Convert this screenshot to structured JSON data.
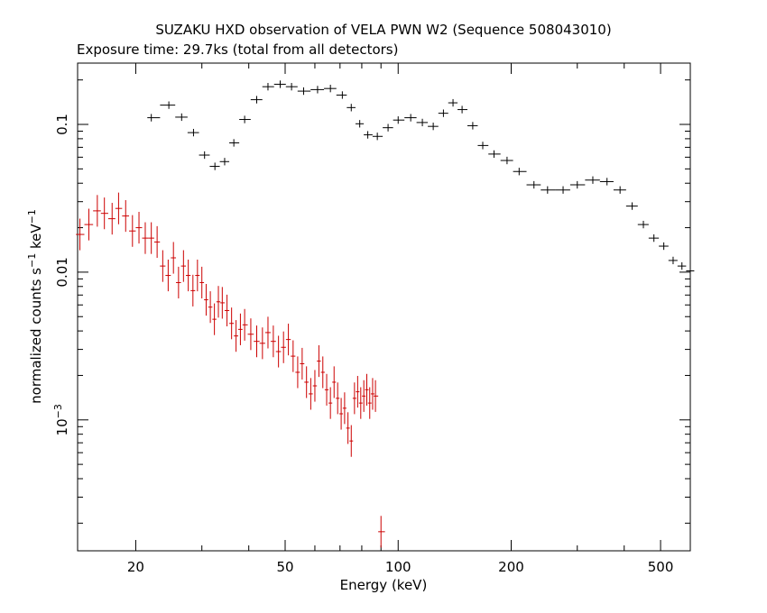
{
  "chart_data": {
    "type": "scatter",
    "title": "SUZAKU HXD observation of VELA PWN W2 (Sequence 508043010)",
    "subtitle": "Exposure time: 29.7ks (total from all detectors)",
    "xlabel": "Energy (keV)",
    "ylabel": {
      "base": "normalized counts s",
      "exp1": "−1",
      "mid": " keV",
      "exp2": "−1"
    },
    "x_scale": "log",
    "y_scale": "log",
    "xlim": [
      14,
      600
    ],
    "ylim": [
      0.00013,
      0.26
    ],
    "x_ticks": [
      {
        "value": 20,
        "label": "20"
      },
      {
        "value": 50,
        "label": "50"
      },
      {
        "value": 100,
        "label": "100"
      },
      {
        "value": 200,
        "label": "200"
      },
      {
        "value": 500,
        "label": "500"
      }
    ],
    "y_ticks": [
      {
        "value": 0.1,
        "label": "0.1"
      },
      {
        "value": 0.01,
        "label": "0.01"
      },
      {
        "value": 0.001,
        "label": "10",
        "sup": "−3"
      }
    ],
    "series": [
      {
        "color": "#000000",
        "points": [
          [
            22,
            0.111
          ],
          [
            24.5,
            0.135
          ],
          [
            26.5,
            0.112
          ],
          [
            28.5,
            0.088
          ],
          [
            30.5,
            0.062
          ],
          [
            32.5,
            0.052
          ],
          [
            34.5,
            0.056
          ],
          [
            36.5,
            0.075
          ],
          [
            39,
            0.108
          ],
          [
            42,
            0.147
          ],
          [
            45,
            0.18
          ],
          [
            48.5,
            0.187
          ],
          [
            52,
            0.18
          ],
          [
            56,
            0.168
          ],
          [
            61,
            0.172
          ],
          [
            66,
            0.175
          ],
          [
            71,
            0.158
          ],
          [
            75,
            0.13
          ],
          [
            79,
            0.101
          ],
          [
            83,
            0.085
          ],
          [
            88,
            0.083
          ],
          [
            94,
            0.095
          ],
          [
            100,
            0.107
          ],
          [
            108,
            0.111
          ],
          [
            116,
            0.103
          ],
          [
            124,
            0.097
          ],
          [
            132,
            0.119
          ],
          [
            140,
            0.14
          ],
          [
            148,
            0.126
          ],
          [
            158,
            0.098
          ],
          [
            168,
            0.072
          ],
          [
            180,
            0.063
          ],
          [
            195,
            0.057
          ],
          [
            210,
            0.048
          ],
          [
            230,
            0.039
          ],
          [
            250,
            0.036
          ],
          [
            275,
            0.036
          ],
          [
            300,
            0.039
          ],
          [
            330,
            0.042
          ],
          [
            360,
            0.041
          ],
          [
            390,
            0.036
          ],
          [
            420,
            0.028
          ],
          [
            450,
            0.021
          ],
          [
            480,
            0.017
          ],
          [
            510,
            0.015
          ],
          [
            540,
            0.012
          ],
          [
            570,
            0.011
          ],
          [
            600,
            0.0102
          ]
        ]
      },
      {
        "color": "#cc0000",
        "points": [
          [
            14.2,
            0.018
          ],
          [
            15,
            0.021
          ],
          [
            15.8,
            0.026
          ],
          [
            16.5,
            0.025
          ],
          [
            17.3,
            0.023
          ],
          [
            18,
            0.027
          ],
          [
            18.8,
            0.024
          ],
          [
            19.6,
            0.019
          ],
          [
            20.4,
            0.02
          ],
          [
            21.2,
            0.017
          ],
          [
            22,
            0.017
          ],
          [
            22.8,
            0.016
          ],
          [
            23.6,
            0.011
          ],
          [
            24.4,
            0.0095
          ],
          [
            25.2,
            0.0125
          ],
          [
            26,
            0.0085
          ],
          [
            26.8,
            0.011
          ],
          [
            27.6,
            0.0095
          ],
          [
            28.4,
            0.0075
          ],
          [
            29.2,
            0.0095
          ],
          [
            30,
            0.0085
          ],
          [
            30.8,
            0.0065
          ],
          [
            31.6,
            0.0058
          ],
          [
            32.4,
            0.0048
          ],
          [
            33.2,
            0.0063
          ],
          [
            34,
            0.0062
          ],
          [
            35,
            0.0055
          ],
          [
            36,
            0.0045
          ],
          [
            37,
            0.0037
          ],
          [
            38,
            0.0041
          ],
          [
            39,
            0.0044
          ],
          [
            40.5,
            0.0038
          ],
          [
            42,
            0.0034
          ],
          [
            43.5,
            0.0033
          ],
          [
            45,
            0.0039
          ],
          [
            46.5,
            0.0034
          ],
          [
            48,
            0.0029
          ],
          [
            49.5,
            0.0031
          ],
          [
            51,
            0.0035
          ],
          [
            52.5,
            0.0027
          ],
          [
            54,
            0.0021
          ],
          [
            55.5,
            0.0024
          ],
          [
            57,
            0.0018
          ],
          [
            58.5,
            0.0015
          ],
          [
            60,
            0.0017
          ],
          [
            61.5,
            0.0025
          ],
          [
            63,
            0.0021
          ],
          [
            64.5,
            0.0016
          ],
          [
            66,
            0.0013
          ],
          [
            67.5,
            0.0018
          ],
          [
            69,
            0.0014
          ],
          [
            70.5,
            0.0011
          ],
          [
            72,
            0.0012
          ],
          [
            73.5,
            0.00088
          ],
          [
            75,
            0.00072
          ],
          [
            76.5,
            0.0014
          ],
          [
            78,
            0.00155
          ],
          [
            79.5,
            0.0013
          ],
          [
            81,
            0.00145
          ],
          [
            82.5,
            0.0016
          ],
          [
            84,
            0.0013
          ],
          [
            85.5,
            0.0015
          ],
          [
            87,
            0.00145
          ],
          [
            90,
            0.000175
          ]
        ]
      }
    ]
  }
}
